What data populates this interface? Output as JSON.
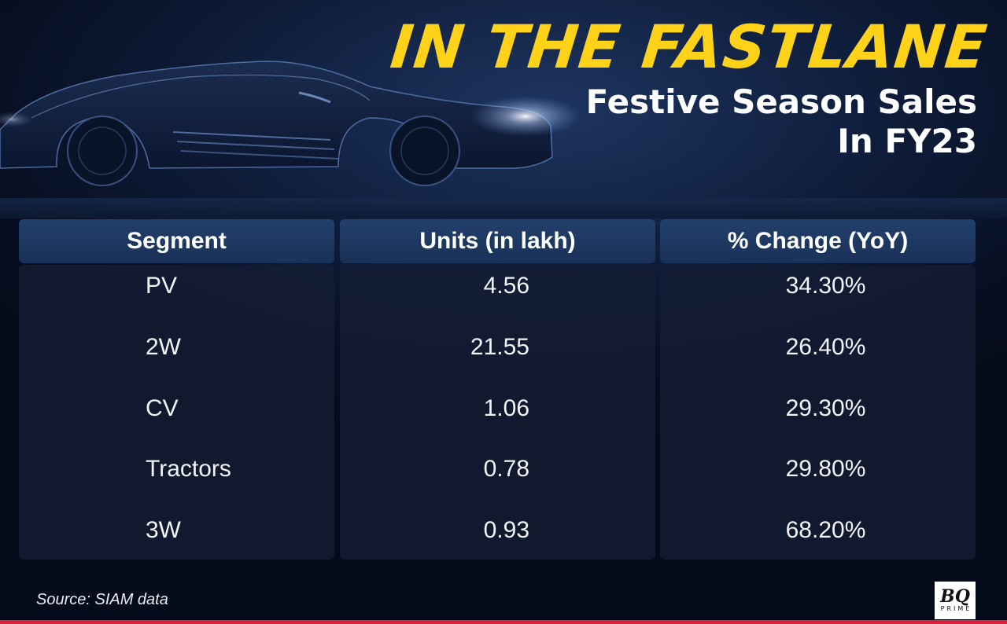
{
  "header": {
    "title": "IN THE FASTLANE",
    "subtitle_line1": "Festive Season Sales",
    "subtitle_line2": "In FY23"
  },
  "chart_data": {
    "type": "table",
    "columns": [
      "Segment",
      "Units (in lakh)",
      "% Change (YoY)"
    ],
    "rows": [
      {
        "segment": "PV",
        "units": "4.56",
        "change": "34.30%"
      },
      {
        "segment": "2W",
        "units": "21.55",
        "change": "26.40%"
      },
      {
        "segment": "CV",
        "units": "1.06",
        "change": "29.30%"
      },
      {
        "segment": "Tractors",
        "units": "0.78",
        "change": "29.80%"
      },
      {
        "segment": "3W",
        "units": "0.93",
        "change": "68.20%"
      }
    ]
  },
  "footer": {
    "source": "Source: SIAM data",
    "logo_mark": "BQ",
    "logo_sub": "PRIME"
  },
  "colors": {
    "title": "#ffd21a",
    "background": "#0a1730",
    "header_cell": "#1f3a63",
    "accent_line": "#d8203a"
  },
  "icons": [
    "car-silhouette-icon"
  ]
}
